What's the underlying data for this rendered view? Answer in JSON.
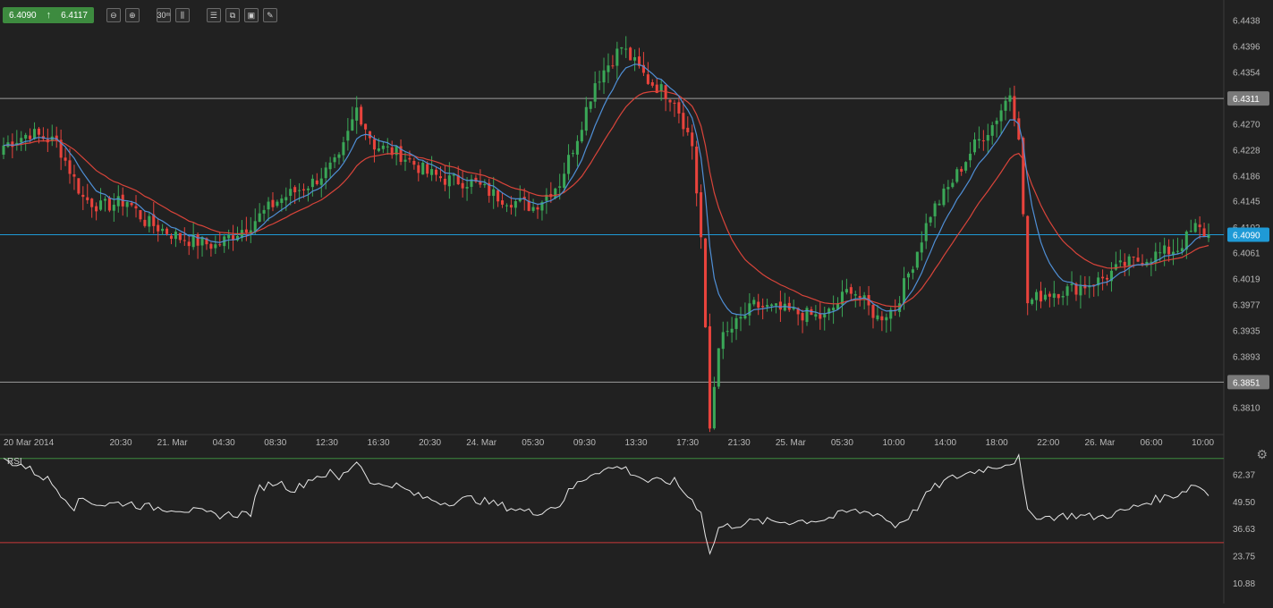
{
  "toolbar": {
    "bid": "6.4090",
    "ask": "6.4117",
    "icons": [
      "zoom-out-icon",
      "zoom-in-icon",
      "timeframe-icon",
      "candles-icon",
      "indicators-icon",
      "objects-icon",
      "screenshot-icon",
      "draw-icon"
    ],
    "timeframe_label": "30",
    "timeframe_unit": "m"
  },
  "colors": {
    "background": "#212121",
    "up": "#3aa757",
    "down": "#e8433c",
    "ma_fast": "#4f8fd6",
    "ma_slow": "#d9443a",
    "current_price": "#1f9ad6",
    "rsi_line": "#e6e6e6",
    "rsi_upper": "#3d8b3f",
    "rsi_lower": "#c9383a"
  },
  "chart_data": [
    {
      "type": "candlestick",
      "ylim": [
        6.3766,
        6.4459
      ],
      "y_ticks": [
        "6.4438",
        "6.4396",
        "6.4354",
        "6.4311",
        "6.4270",
        "6.4228",
        "6.4186",
        "6.4145",
        "6.4102",
        "6.4061",
        "6.4019",
        "6.3977",
        "6.3935",
        "6.3893",
        "6.3851",
        "6.3810"
      ],
      "x_labels": [
        "20 Mar 2014",
        "20:30",
        "21. Mar",
        "04:30",
        "08:30",
        "12:30",
        "16:30",
        "20:30",
        "24. Mar",
        "05:30",
        "09:30",
        "13:30",
        "17:30",
        "21:30",
        "25. Mar",
        "05:30",
        "10:00",
        "14:00",
        "18:00",
        "22:00",
        "26. Mar",
        "06:00",
        "10:00"
      ],
      "horizontal_lines": [
        6.4311,
        6.3851
      ],
      "price_badges": {
        "resistance": "6.4311",
        "support": "6.3851",
        "current": "6.4090"
      },
      "current_price": 6.409,
      "key_points": [
        [
          0,
          6.4235
        ],
        [
          6,
          6.4255
        ],
        [
          12,
          6.424
        ],
        [
          18,
          6.415
        ],
        [
          22,
          6.4135
        ],
        [
          28,
          6.4145
        ],
        [
          32,
          6.4112
        ],
        [
          40,
          6.4085
        ],
        [
          48,
          6.4072
        ],
        [
          56,
          6.4108
        ],
        [
          62,
          6.4145
        ],
        [
          70,
          6.4175
        ],
        [
          76,
          6.421
        ],
        [
          80,
          6.4295
        ],
        [
          84,
          6.4235
        ],
        [
          90,
          6.422
        ],
        [
          96,
          6.419
        ],
        [
          100,
          6.418
        ],
        [
          106,
          6.4175
        ],
        [
          112,
          6.4152
        ],
        [
          120,
          6.4135
        ],
        [
          126,
          6.4175
        ],
        [
          130,
          6.425
        ],
        [
          134,
          6.4338
        ],
        [
          140,
          6.4395
        ],
        [
          146,
          6.434
        ],
        [
          152,
          6.431
        ],
        [
          156,
          6.4235
        ],
        [
          158,
          6.4085
        ],
        [
          160,
          6.3775
        ],
        [
          162,
          6.3915
        ],
        [
          170,
          6.3975
        ],
        [
          178,
          6.3965
        ],
        [
          186,
          6.3955
        ],
        [
          192,
          6.4005
        ],
        [
          198,
          6.3955
        ],
        [
          202,
          6.3972
        ],
        [
          206,
          6.4045
        ],
        [
          210,
          6.4125
        ],
        [
          214,
          6.4165
        ],
        [
          220,
          6.4235
        ],
        [
          224,
          6.4268
        ],
        [
          228,
          6.432
        ],
        [
          230,
          6.4255
        ],
        [
          232,
          6.398
        ],
        [
          236,
          6.3995
        ],
        [
          242,
          6.4002
        ],
        [
          248,
          6.4015
        ],
        [
          254,
          6.4042
        ],
        [
          260,
          6.4055
        ],
        [
          266,
          6.4068
        ],
        [
          270,
          6.4102
        ],
        [
          273,
          6.4088
        ]
      ],
      "moving_averages": [
        "fast",
        "slow"
      ]
    },
    {
      "type": "line",
      "series": [
        {
          "name": "RSI"
        }
      ],
      "ylim": [
        4.0,
        72.0
      ],
      "y_ticks": [
        "62.37",
        "49.50",
        "36.63",
        "23.75",
        "10.88"
      ],
      "levels": [
        70,
        30
      ],
      "key_points": [
        [
          0,
          69
        ],
        [
          4,
          67
        ],
        [
          10,
          60
        ],
        [
          16,
          47
        ],
        [
          18,
          51
        ],
        [
          22,
          48
        ],
        [
          28,
          49
        ],
        [
          32,
          47
        ],
        [
          40,
          46
        ],
        [
          48,
          43
        ],
        [
          56,
          44
        ],
        [
          58,
          56
        ],
        [
          62,
          59
        ],
        [
          66,
          55
        ],
        [
          70,
          61
        ],
        [
          74,
          63
        ],
        [
          76,
          60
        ],
        [
          80,
          69
        ],
        [
          84,
          57
        ],
        [
          88,
          58
        ],
        [
          94,
          52
        ],
        [
          100,
          49
        ],
        [
          106,
          51
        ],
        [
          112,
          48
        ],
        [
          120,
          44
        ],
        [
          126,
          48
        ],
        [
          128,
          54
        ],
        [
          130,
          58
        ],
        [
          134,
          64
        ],
        [
          140,
          66
        ],
        [
          146,
          59
        ],
        [
          152,
          59
        ],
        [
          156,
          50
        ],
        [
          158,
          45
        ],
        [
          160,
          24
        ],
        [
          162,
          37
        ],
        [
          170,
          40
        ],
        [
          178,
          40
        ],
        [
          186,
          41
        ],
        [
          192,
          45
        ],
        [
          198,
          44
        ],
        [
          202,
          38
        ],
        [
          206,
          44
        ],
        [
          210,
          55
        ],
        [
          214,
          60
        ],
        [
          220,
          64
        ],
        [
          224,
          66
        ],
        [
          228,
          68
        ],
        [
          230,
          70
        ],
        [
          232,
          44
        ],
        [
          236,
          42
        ],
        [
          242,
          43
        ],
        [
          248,
          42
        ],
        [
          254,
          45
        ],
        [
          260,
          50
        ],
        [
          266,
          53
        ],
        [
          270,
          58
        ],
        [
          273,
          53
        ]
      ]
    }
  ]
}
